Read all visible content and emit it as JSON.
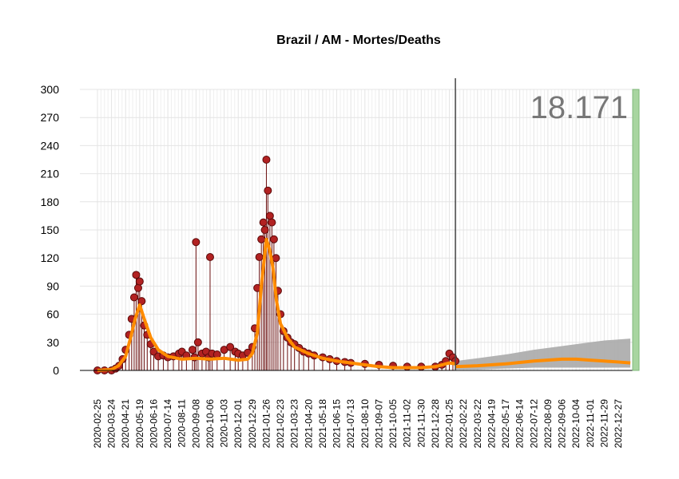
{
  "chart_data": {
    "type": "line",
    "title": "Brazil / AM - Mortes/Deaths",
    "xlabel": "",
    "ylabel": "",
    "ylim": [
      0,
      300
    ],
    "y_ticks": [
      "0",
      "30",
      "60",
      "90",
      "120",
      "150",
      "180",
      "210",
      "240",
      "270",
      "300"
    ],
    "x_ticks": [
      "2020-02-25",
      "2020-03-24",
      "2020-04-21",
      "2020-05-19",
      "2020-06-16",
      "2020-07-14",
      "2020-08-11",
      "2020-09-08",
      "2020-10-06",
      "2020-11-03",
      "2020-12-01",
      "2020-12-29",
      "2021-01-26",
      "2021-02-23",
      "2021-03-23",
      "2021-04-20",
      "2021-05-18",
      "2021-06-15",
      "2021-07-13",
      "2021-08-10",
      "2021-09-07",
      "2021-10-05",
      "2021-11-02",
      "2021-11-30",
      "2021-12-28",
      "2022-01-25",
      "2022-02-22",
      "2022-03-22",
      "2022-04-19",
      "2022-05-17",
      "2022-06-14",
      "2022-07-12",
      "2022-08-09",
      "2022-09-06",
      "2022-10-04",
      "2022-11-01",
      "2022-11-29",
      "2022-12-27"
    ],
    "total_label": "18.171",
    "grid": true,
    "vertical_marker_date": "2022-02-06",
    "series": [
      {
        "kind": "daily_points",
        "color": "#b22222",
        "x": [
          "2020-02-25",
          "2020-03-10",
          "2020-03-24",
          "2020-04-01",
          "2020-04-08",
          "2020-04-15",
          "2020-04-21",
          "2020-04-28",
          "2020-05-03",
          "2020-05-08",
          "2020-05-12",
          "2020-05-16",
          "2020-05-19",
          "2020-05-23",
          "2020-05-28",
          "2020-06-03",
          "2020-06-10",
          "2020-06-16",
          "2020-06-25",
          "2020-07-05",
          "2020-07-14",
          "2020-07-25",
          "2020-08-05",
          "2020-08-11",
          "2020-08-20",
          "2020-09-01",
          "2020-09-05",
          "2020-09-08",
          "2020-09-12",
          "2020-09-20",
          "2020-09-28",
          "2020-10-03",
          "2020-10-06",
          "2020-10-10",
          "2020-10-20",
          "2020-11-03",
          "2020-11-15",
          "2020-11-25",
          "2020-12-01",
          "2020-12-10",
          "2020-12-20",
          "2020-12-29",
          "2021-01-03",
          "2021-01-08",
          "2021-01-12",
          "2021-01-16",
          "2021-01-20",
          "2021-01-23",
          "2021-01-26",
          "2021-01-29",
          "2021-02-02",
          "2021-02-06",
          "2021-02-10",
          "2021-02-14",
          "2021-02-18",
          "2021-02-23",
          "2021-03-01",
          "2021-03-09",
          "2021-03-16",
          "2021-03-23",
          "2021-04-01",
          "2021-04-10",
          "2021-04-20",
          "2021-05-01",
          "2021-05-18",
          "2021-06-01",
          "2021-06-15",
          "2021-07-01",
          "2021-07-13",
          "2021-08-10",
          "2021-09-07",
          "2021-10-05",
          "2021-11-02",
          "2021-11-30",
          "2021-12-28",
          "2022-01-10",
          "2022-01-18",
          "2022-01-25",
          "2022-02-01",
          "2022-02-06"
        ],
        "y": [
          0,
          0,
          0,
          2,
          5,
          12,
          22,
          38,
          55,
          78,
          102,
          88,
          95,
          74,
          48,
          38,
          28,
          20,
          15,
          16,
          14,
          15,
          18,
          20,
          16,
          22,
          14,
          137,
          30,
          18,
          20,
          14,
          121,
          18,
          17,
          22,
          25,
          20,
          18,
          16,
          19,
          25,
          45,
          88,
          121,
          140,
          158,
          150,
          225,
          192,
          165,
          158,
          140,
          120,
          85,
          60,
          42,
          35,
          30,
          28,
          24,
          20,
          18,
          16,
          14,
          12,
          10,
          9,
          8,
          7,
          6,
          5,
          4,
          4,
          4,
          6,
          10,
          18,
          14,
          10
        ]
      },
      {
        "kind": "moving_average",
        "color": "#ff8c00",
        "x": [
          "2020-02-25",
          "2020-03-24",
          "2020-04-07",
          "2020-04-21",
          "2020-05-01",
          "2020-05-10",
          "2020-05-19",
          "2020-05-28",
          "2020-06-10",
          "2020-06-25",
          "2020-07-14",
          "2020-08-11",
          "2020-09-08",
          "2020-10-06",
          "2020-11-03",
          "2020-12-01",
          "2020-12-20",
          "2020-12-29",
          "2021-01-08",
          "2021-01-16",
          "2021-01-22",
          "2021-01-26",
          "2021-02-01",
          "2021-02-08",
          "2021-02-15",
          "2021-02-23",
          "2021-03-09",
          "2021-03-23",
          "2021-04-20",
          "2021-05-18",
          "2021-06-15",
          "2021-07-13",
          "2021-08-10",
          "2021-09-07",
          "2021-10-05",
          "2021-11-02",
          "2021-11-30",
          "2021-12-28",
          "2022-01-25",
          "2022-02-06"
        ],
        "y": [
          0,
          1,
          5,
          15,
          35,
          55,
          70,
          55,
          35,
          22,
          15,
          12,
          13,
          12,
          13,
          11,
          12,
          18,
          40,
          90,
          120,
          140,
          130,
          110,
          75,
          50,
          35,
          25,
          18,
          13,
          10,
          8,
          6,
          4,
          3,
          3,
          3,
          4,
          8,
          7
        ]
      },
      {
        "kind": "forecast",
        "color": "#ff8c00",
        "band_color": "#aaaaaa",
        "x": [
          "2022-02-06",
          "2022-03-22",
          "2022-05-17",
          "2022-07-12",
          "2022-09-06",
          "2022-10-04",
          "2022-11-01",
          "2022-11-29",
          "2022-12-27",
          "2023-01-20"
        ],
        "y": [
          4,
          5,
          7,
          10,
          12,
          12,
          11,
          10,
          9,
          8
        ],
        "upper": [
          10,
          13,
          17,
          22,
          26,
          28,
          30,
          32,
          33,
          34
        ],
        "lower": [
          1,
          1,
          2,
          3,
          3,
          3,
          3,
          3,
          3,
          3
        ]
      }
    ]
  }
}
